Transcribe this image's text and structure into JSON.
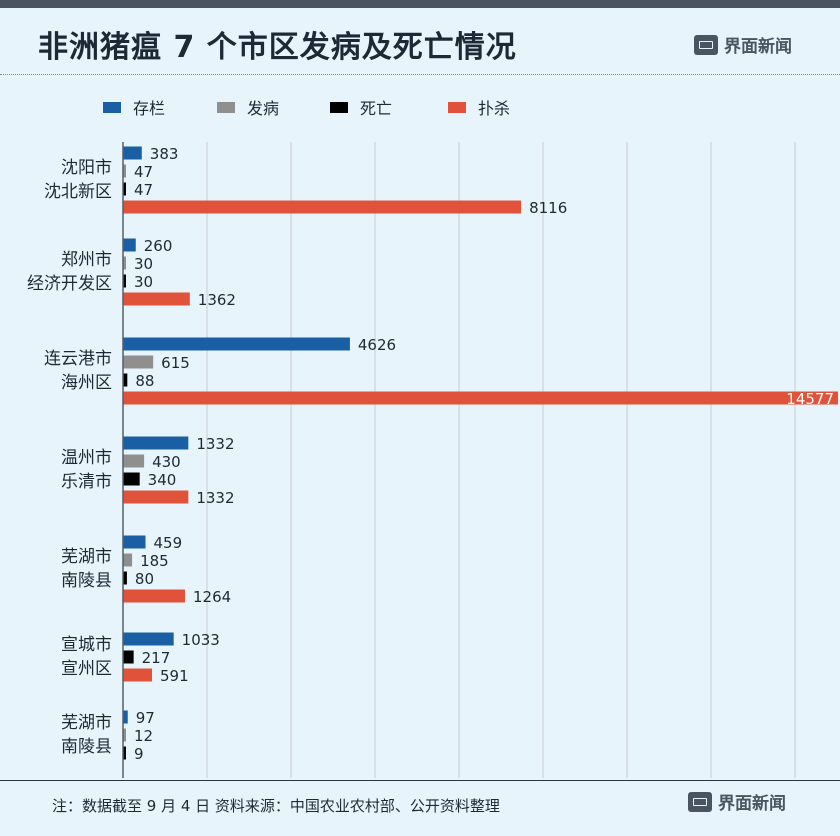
{
  "title": "非洲猪瘟 7 个市区发病及死亡情况",
  "brand": "界面新闻",
  "footnote": "注：数据截至 9 月 4 日  资料来源：中国农业农村部、公开资料整理",
  "chart_data": {
    "type": "bar",
    "orientation": "horizontal",
    "title": "非洲猪瘟 7 个市区发病及死亡情况",
    "xlim": [
      0,
      14577
    ],
    "grid": true,
    "legend_position": "top",
    "series": [
      {
        "name": "存栏",
        "color": "#1a5fa3",
        "values": [
          383,
          260,
          4626,
          1332,
          459,
          1033,
          97
        ]
      },
      {
        "name": "发病",
        "color": "#8f8f8f",
        "values": [
          47,
          30,
          615,
          430,
          185,
          null,
          12
        ]
      },
      {
        "name": "死亡",
        "color": "#000000",
        "values": [
          47,
          30,
          88,
          340,
          80,
          217,
          9
        ]
      },
      {
        "name": "扑杀",
        "color": "#e0533a",
        "values": [
          8116,
          1362,
          14577,
          1332,
          1264,
          591,
          null
        ]
      }
    ],
    "categories": [
      {
        "line1": "沈阳市",
        "line2": "沈北新区"
      },
      {
        "line1": "郑州市",
        "line2": "经济开发区"
      },
      {
        "line1": "连云港市",
        "line2": "海州区"
      },
      {
        "line1": "温州市",
        "line2": "乐清市"
      },
      {
        "line1": "芜湖市",
        "line2": "南陵县"
      },
      {
        "line1": "宣城市",
        "line2": "宣州区"
      },
      {
        "line1": "芜湖市",
        "line2": "南陵县"
      }
    ]
  }
}
